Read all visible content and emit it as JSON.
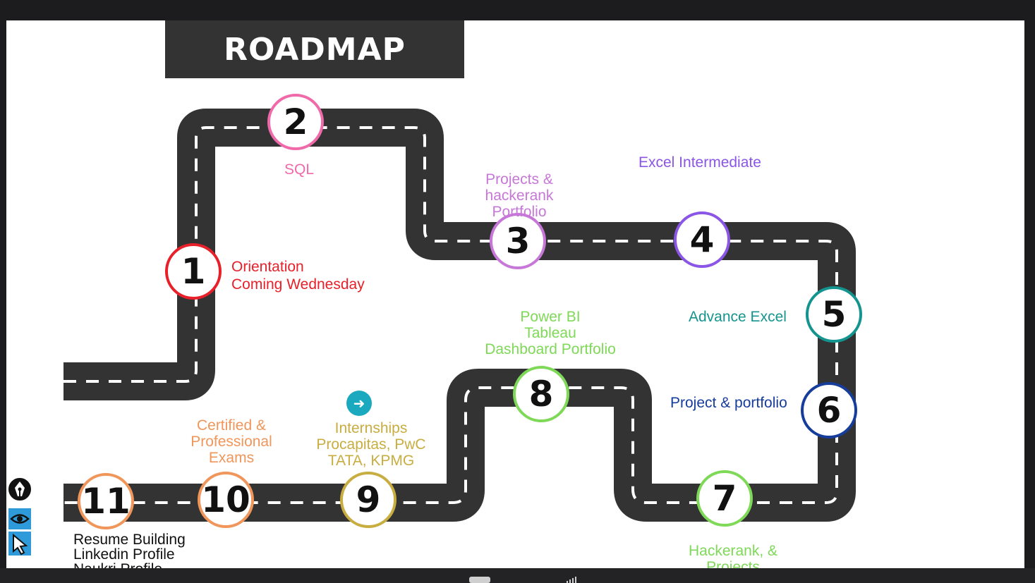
{
  "slide": {
    "title": "ROADMAP"
  },
  "colors": {
    "road": "#333333",
    "dash": "#ffffff",
    "step1": "#e8202a",
    "step2": "#f06aaa",
    "step3": "#c777d8",
    "step4": "#8b55e6",
    "step5": "#14948f",
    "step6": "#163c9c",
    "step7": "#7ed957",
    "step8": "#7ed957",
    "step9": "#c8ad41",
    "step10": "#f0965a",
    "step11": "#f0965a"
  },
  "steps": [
    {
      "number": "1",
      "lines": [
        "Orientation",
        "Coming Wednesday"
      ]
    },
    {
      "number": "2",
      "lines": [
        "SQL"
      ]
    },
    {
      "number": "3",
      "lines": [
        "Projects &",
        "hackerank",
        "Portfolio"
      ]
    },
    {
      "number": "4",
      "lines": [
        "Excel Intermediate"
      ]
    },
    {
      "number": "5",
      "lines": [
        "Advance Excel"
      ]
    },
    {
      "number": "6",
      "lines": [
        "Project & portfolio"
      ]
    },
    {
      "number": "7",
      "lines": [
        "Hackerank, &",
        "Projects"
      ]
    },
    {
      "number": "8",
      "lines": [
        "Power BI",
        "Tableau",
        "Dashboard Portfolio"
      ]
    },
    {
      "number": "9",
      "lines": [
        "Internships",
        "Procapitas, PwC",
        "TATA, KPMG"
      ]
    },
    {
      "number": "10",
      "lines": [
        "Certified &",
        "Professional",
        "Exams"
      ]
    },
    {
      "number": "11",
      "lines": [
        "Resume Building",
        "Linkedin Profile",
        "Naukri Profile"
      ]
    }
  ],
  "icons": {
    "next": "arrow-right-icon",
    "pen": "pen-nib-icon",
    "eye": "eye-icon",
    "cursor": "cursor-icon"
  }
}
